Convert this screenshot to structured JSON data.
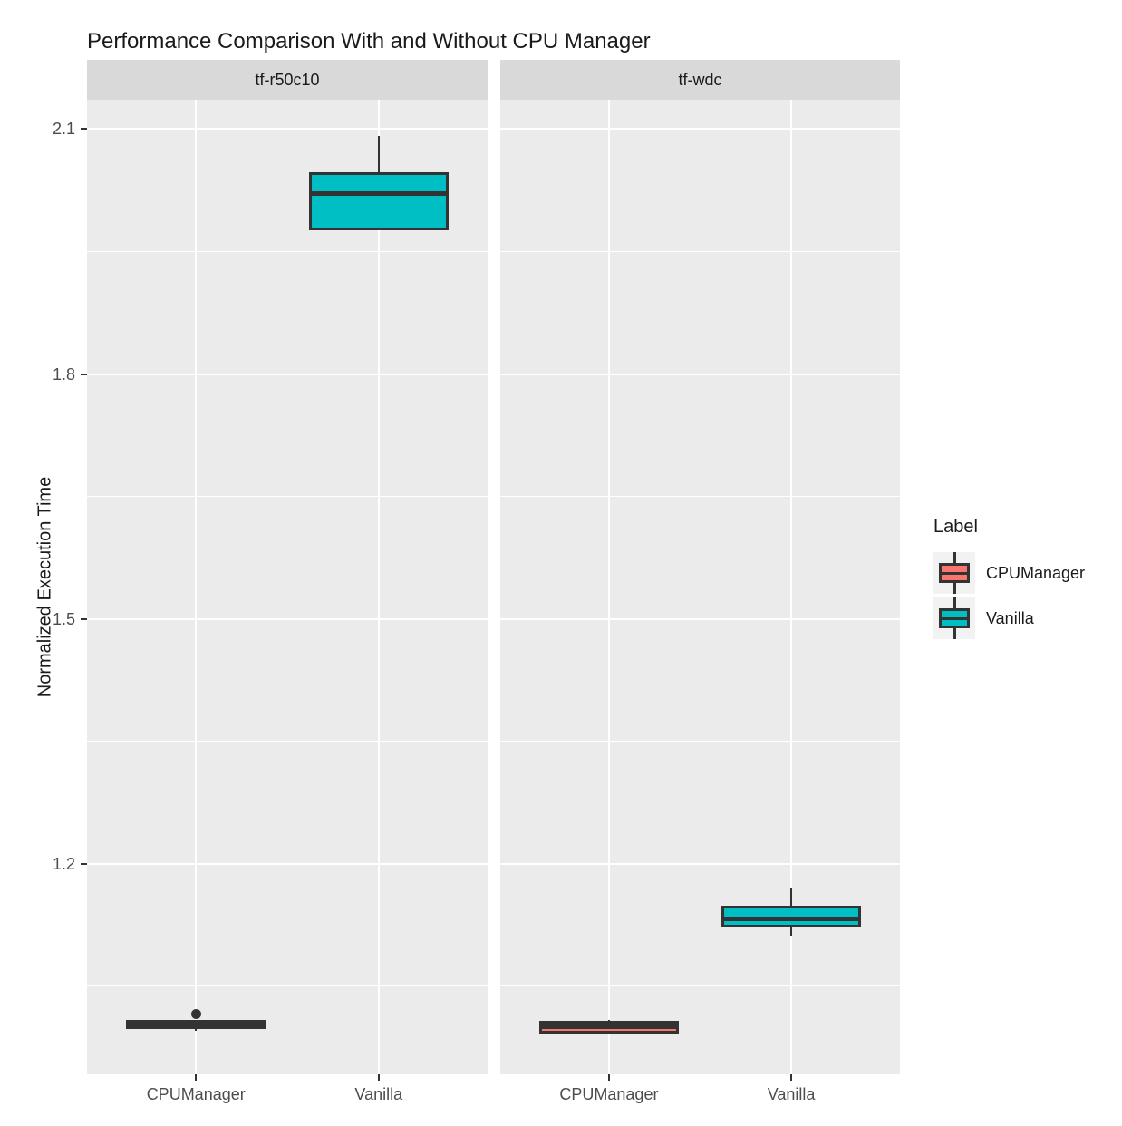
{
  "title": "Performance Comparison With and Without CPU Manager",
  "colors": {
    "panel_background": "#ebebeb",
    "strip_background": "#d9d9d9",
    "gridline": "#ffffff",
    "box_border": "#333333",
    "tick_text": "#4d4d4d",
    "cpumanager_fill": "#F8766D",
    "vanilla_fill": "#00BFC4",
    "legend_key_background": "#f2f2f2"
  },
  "legend": {
    "title": "Label",
    "entries": [
      {
        "label": "CPUManager",
        "color": "#F8766D"
      },
      {
        "label": "Vanilla",
        "color": "#00BFC4"
      }
    ]
  },
  "chart_data": {
    "type": "boxplot",
    "title": "Performance Comparison With and Without CPU Manager",
    "xlabel": "",
    "ylabel": "Normalized Execution Time",
    "ylim": [
      0.942,
      2.136
    ],
    "grid": true,
    "legend_position": "right",
    "categories": [
      "CPUManager",
      "Vanilla"
    ],
    "yticks": [
      {
        "value": 2.1,
        "label": "2.1"
      },
      {
        "value": 1.8,
        "label": "1.8"
      },
      {
        "value": 1.5,
        "label": "1.5"
      },
      {
        "value": 1.2,
        "label": "1.2"
      }
    ],
    "yminor": [
      1.95,
      1.65,
      1.35,
      1.05
    ],
    "facets": [
      {
        "label": "tf-r50c10",
        "boxes": [
          {
            "group": "CPUManager",
            "fill": "#F8766D",
            "whislo": 0.995,
            "q1": 0.998,
            "med": 1.002,
            "q3": 1.009,
            "whishi": 1.009,
            "outliers": [
              1.016
            ]
          },
          {
            "group": "Vanilla",
            "fill": "#00BFC4",
            "whislo": 1.976,
            "q1": 1.976,
            "med": 2.021,
            "q3": 2.047,
            "whishi": 2.092,
            "outliers": []
          }
        ]
      },
      {
        "label": "tf-wdc",
        "boxes": [
          {
            "group": "CPUManager",
            "fill": "#F8766D",
            "whislo": 0.992,
            "q1": 0.992,
            "med": 1.0,
            "q3": 1.007,
            "whishi": 1.009,
            "outliers": []
          },
          {
            "group": "Vanilla",
            "fill": "#00BFC4",
            "whislo": 1.112,
            "q1": 1.122,
            "med": 1.133,
            "q3": 1.149,
            "whishi": 1.171,
            "outliers": []
          }
        ]
      }
    ]
  }
}
